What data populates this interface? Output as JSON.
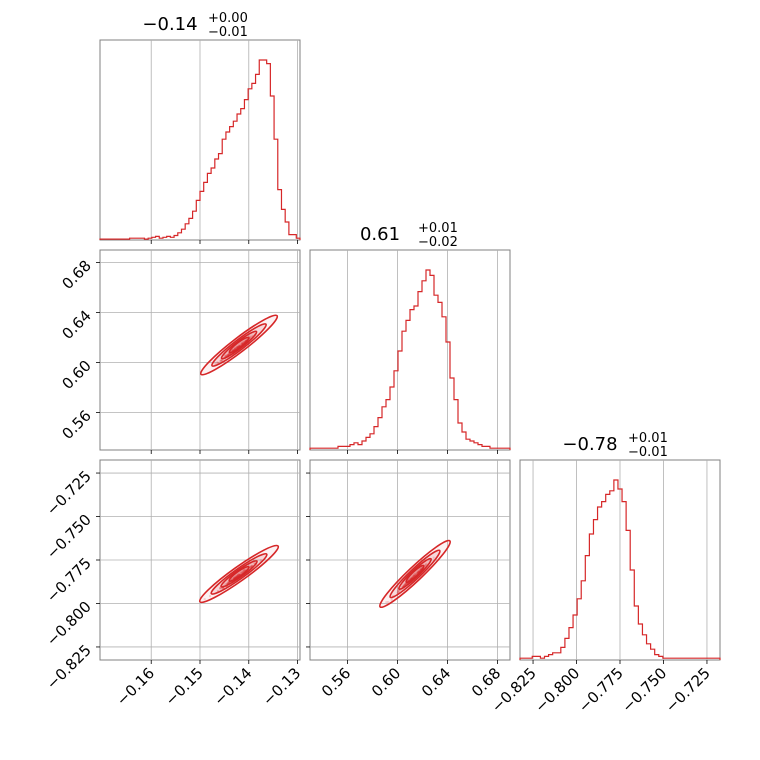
{
  "chart_data": {
    "type": "corner",
    "color": "#d62728",
    "grid": true,
    "parameters": [
      {
        "median": "−0.14",
        "plus": "+0.00",
        "minus": "−0.01",
        "range": [
          -0.1705,
          -0.1295
        ],
        "ticks": [
          -0.16,
          -0.15,
          -0.14,
          -0.13
        ],
        "tick_labels": [
          "−0.16",
          "−0.15",
          "−0.14",
          "−0.13"
        ]
      },
      {
        "median": "0.61",
        "plus": "+0.01",
        "minus": "−0.02",
        "range": [
          0.53,
          0.69
        ],
        "ticks": [
          0.56,
          0.6,
          0.64,
          0.68
        ],
        "tick_labels": [
          "0.56",
          "0.60",
          "0.64",
          "0.68"
        ]
      },
      {
        "median": "−0.78",
        "plus": "+0.01",
        "minus": "−0.01",
        "range": [
          -0.8325,
          -0.7175
        ],
        "ticks": [
          -0.825,
          -0.8,
          -0.775,
          -0.75,
          -0.725
        ],
        "tick_labels": [
          "−0.825",
          "−0.800",
          "−0.775",
          "−0.750",
          "−0.725"
        ]
      }
    ],
    "histograms": [
      {
        "values": [
          0.5,
          0.5,
          0.5,
          0.5,
          0.5,
          0.5,
          0.5,
          0.5,
          1,
          1,
          1,
          1,
          0.5,
          1,
          1.5,
          2,
          1,
          1.5,
          2,
          1.5,
          2.5,
          4,
          6,
          9,
          12,
          16,
          22,
          27,
          32,
          37,
          40,
          45,
          48,
          56,
          60,
          63,
          66,
          70,
          73,
          78,
          84,
          87,
          92,
          100,
          100,
          98,
          80,
          56,
          28,
          17,
          10,
          3,
          3,
          1
        ]
      },
      {
        "values": [
          1,
          1,
          1,
          1,
          1,
          1,
          1,
          2,
          2,
          2,
          3,
          4,
          3,
          5,
          7,
          9,
          13,
          18,
          24,
          28,
          35,
          44,
          55,
          66,
          72,
          78,
          80,
          88,
          94,
          100,
          97,
          86,
          82,
          74,
          60,
          40,
          28,
          15,
          10,
          6,
          5,
          4,
          3,
          2,
          2,
          1,
          1,
          1,
          1,
          1
        ]
      },
      {
        "values": [
          1,
          1,
          1,
          2,
          2,
          1,
          2,
          3,
          4,
          4,
          7,
          12,
          18,
          25,
          34,
          44,
          58,
          70,
          78,
          85,
          88,
          92,
          94,
          100,
          95,
          88,
          72,
          50,
          30,
          20,
          14,
          9,
          6,
          3,
          2,
          1,
          1,
          1,
          1,
          1,
          1,
          1,
          1,
          1,
          1,
          1,
          1,
          1,
          1
        ]
      }
    ],
    "pairs": [
      {
        "row": 1,
        "col": 0,
        "slope": 3.0,
        "x0": -0.142,
        "y0": 0.614
      },
      {
        "row": 2,
        "col": 0,
        "slope": 2.0,
        "x0": -0.142,
        "y0": -0.783
      },
      {
        "row": 2,
        "col": 1,
        "slope": 0.68,
        "x0": 0.614,
        "y0": -0.783
      }
    ]
  }
}
